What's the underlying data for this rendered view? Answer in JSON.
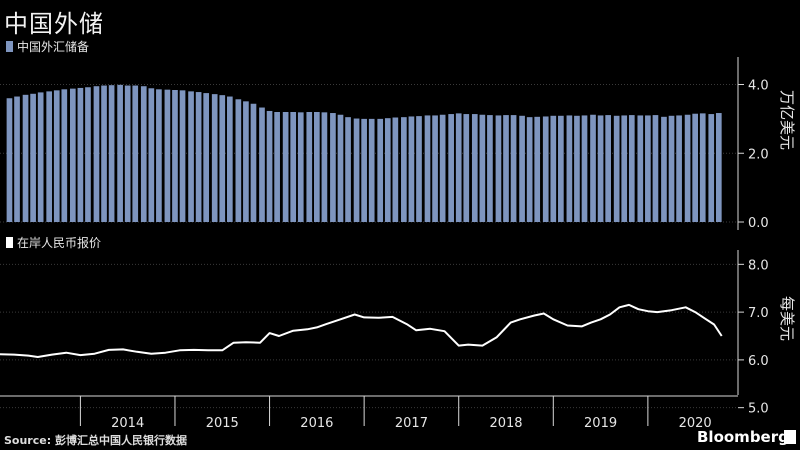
{
  "title": "中国外储",
  "legend_top": "中国外汇储备",
  "legend_bottom": "在岸人民币报价",
  "source_label": "Source:",
  "source_text": "彭博汇总中国人民银行数据",
  "brand": "Bloomberg",
  "colors": {
    "bars": "#7e95bf",
    "line": "#ffffff",
    "grid": "#3a3a3a",
    "axis": "#d9d9d9",
    "background": "#000000"
  },
  "chart_data": [
    {
      "type": "bar",
      "ylabel": "万亿美元",
      "ylim": [
        0,
        4.8
      ],
      "yticks": [
        "0.0",
        "2.0",
        "4.0"
      ],
      "ytick_values": [
        0,
        2,
        4
      ],
      "grid": true,
      "series": [
        {
          "name": "中国外汇储备",
          "x": [
            2013.25,
            2013.33,
            2013.42,
            2013.5,
            2013.58,
            2013.67,
            2013.75,
            2013.83,
            2013.92,
            2014.0,
            2014.08,
            2014.17,
            2014.25,
            2014.33,
            2014.42,
            2014.5,
            2014.58,
            2014.67,
            2014.75,
            2014.83,
            2014.92,
            2015.0,
            2015.08,
            2015.17,
            2015.25,
            2015.33,
            2015.42,
            2015.5,
            2015.58,
            2015.67,
            2015.75,
            2015.83,
            2015.92,
            2016.0,
            2016.08,
            2016.17,
            2016.25,
            2016.33,
            2016.42,
            2016.5,
            2016.58,
            2016.67,
            2016.75,
            2016.83,
            2016.92,
            2017.0,
            2017.08,
            2017.17,
            2017.25,
            2017.33,
            2017.42,
            2017.5,
            2017.58,
            2017.67,
            2017.75,
            2017.83,
            2017.92,
            2018.0,
            2018.08,
            2018.17,
            2018.25,
            2018.33,
            2018.42,
            2018.5,
            2018.58,
            2018.67,
            2018.75,
            2018.83,
            2018.92,
            2019.0,
            2019.08,
            2019.17,
            2019.25,
            2019.33,
            2019.42,
            2019.5,
            2019.58,
            2019.67,
            2019.75,
            2019.83,
            2019.92,
            2020.0,
            2020.08,
            2020.17,
            2020.25,
            2020.33,
            2020.42,
            2020.5,
            2020.58,
            2020.67,
            2020.75
          ],
          "values": [
            3.6,
            3.65,
            3.7,
            3.73,
            3.77,
            3.8,
            3.83,
            3.86,
            3.88,
            3.9,
            3.92,
            3.95,
            3.97,
            3.98,
            3.99,
            3.97,
            3.97,
            3.95,
            3.89,
            3.86,
            3.85,
            3.84,
            3.83,
            3.8,
            3.78,
            3.75,
            3.72,
            3.69,
            3.65,
            3.57,
            3.51,
            3.44,
            3.33,
            3.23,
            3.2,
            3.2,
            3.2,
            3.19,
            3.2,
            3.2,
            3.19,
            3.17,
            3.12,
            3.05,
            3.01,
            3.0,
            3.0,
            3.0,
            3.02,
            3.04,
            3.05,
            3.07,
            3.08,
            3.1,
            3.1,
            3.12,
            3.14,
            3.16,
            3.14,
            3.14,
            3.12,
            3.11,
            3.1,
            3.11,
            3.11,
            3.09,
            3.05,
            3.06,
            3.07,
            3.09,
            3.09,
            3.1,
            3.09,
            3.1,
            3.12,
            3.1,
            3.11,
            3.09,
            3.1,
            3.11,
            3.1,
            3.1,
            3.11,
            3.06,
            3.09,
            3.1,
            3.12,
            3.15,
            3.16,
            3.14,
            3.17
          ]
        }
      ]
    },
    {
      "type": "line",
      "ylabel": "每美元",
      "ylim": [
        4.7,
        8.3
      ],
      "yticks": [
        "5.0",
        "6.0",
        "7.0",
        "8.0"
      ],
      "ytick_values": [
        5,
        6,
        7,
        8
      ],
      "xticks": [
        "2014",
        "2015",
        "2016",
        "2017",
        "2018",
        "2019",
        "2020"
      ],
      "xtick_values": [
        2014.5,
        2015.5,
        2016.5,
        2017.5,
        2018.5,
        2019.5,
        2020.5
      ],
      "xlim": [
        2013.15,
        2020.9
      ],
      "grid": true,
      "series": [
        {
          "name": "在岸人民币报价",
          "x": [
            2013.15,
            2013.3,
            2013.45,
            2013.55,
            2013.7,
            2013.85,
            2014.0,
            2014.15,
            2014.3,
            2014.45,
            2014.6,
            2014.75,
            2014.9,
            2015.05,
            2015.2,
            2015.35,
            2015.5,
            2015.62,
            2015.75,
            2015.9,
            2016.0,
            2016.1,
            2016.25,
            2016.4,
            2016.5,
            2016.6,
            2016.75,
            2016.9,
            2017.0,
            2017.15,
            2017.3,
            2017.45,
            2017.55,
            2017.7,
            2017.85,
            2018.0,
            2018.1,
            2018.25,
            2018.4,
            2018.55,
            2018.65,
            2018.8,
            2018.9,
            2019.0,
            2019.15,
            2019.3,
            2019.4,
            2019.5,
            2019.6,
            2019.7,
            2019.8,
            2019.9,
            2020.0,
            2020.1,
            2020.25,
            2020.4,
            2020.5,
            2020.6,
            2020.7,
            2020.78
          ],
          "values": [
            6.12,
            6.11,
            6.09,
            6.06,
            6.11,
            6.15,
            6.1,
            6.13,
            6.21,
            6.22,
            6.17,
            6.13,
            6.15,
            6.2,
            6.21,
            6.2,
            6.2,
            6.36,
            6.37,
            6.36,
            6.56,
            6.5,
            6.61,
            6.64,
            6.68,
            6.75,
            6.85,
            6.95,
            6.89,
            6.88,
            6.9,
            6.75,
            6.62,
            6.65,
            6.6,
            6.3,
            6.32,
            6.3,
            6.47,
            6.78,
            6.85,
            6.93,
            6.97,
            6.85,
            6.72,
            6.7,
            6.78,
            6.85,
            6.95,
            7.1,
            7.15,
            7.06,
            7.02,
            7.0,
            7.04,
            7.1,
            7.0,
            6.87,
            6.74,
            6.5
          ]
        }
      ]
    }
  ]
}
